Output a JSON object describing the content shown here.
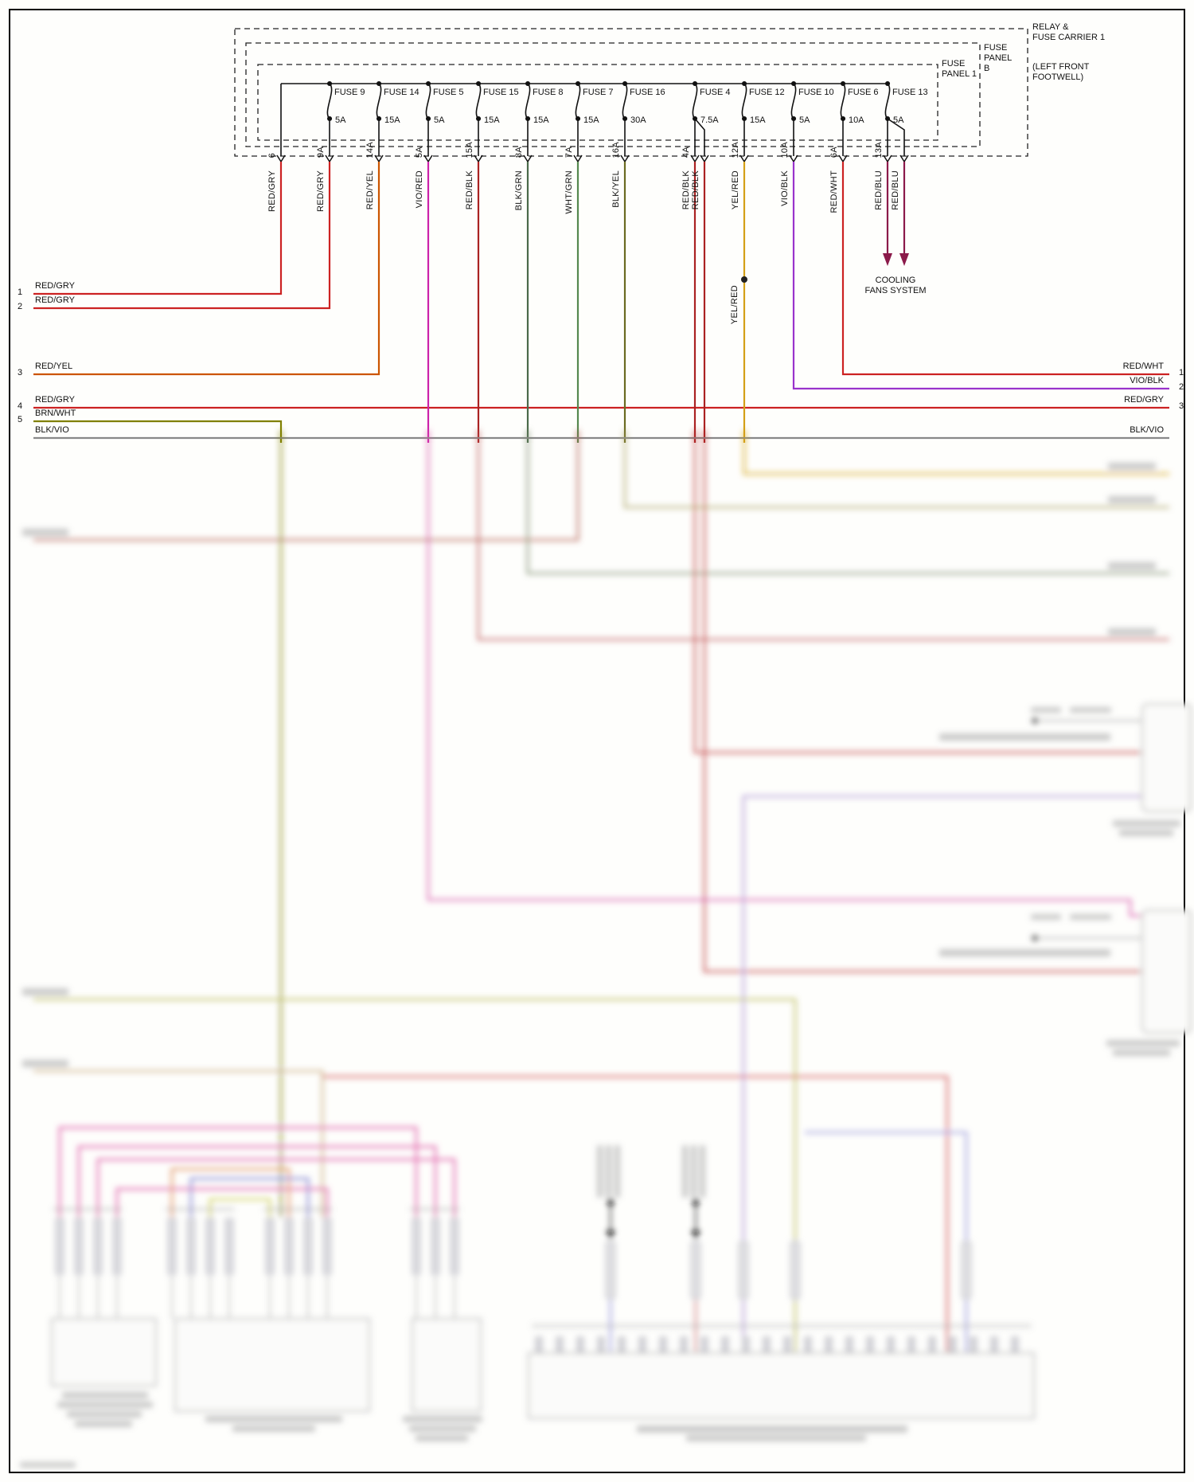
{
  "header": {
    "carrier_title": "RELAY &\nFUSE CARRIER 1",
    "carrier_location": "(LEFT FRONT\nFOOTWELL)",
    "panel_b": "FUSE\nPANEL\nB",
    "panel_1": "FUSE\nPANEL 1"
  },
  "fuses": [
    {
      "label": "FUSE 9",
      "amp": "5A"
    },
    {
      "label": "FUSE 14",
      "amp": "15A"
    },
    {
      "label": "FUSE 5",
      "amp": "5A"
    },
    {
      "label": "FUSE 15",
      "amp": "15A"
    },
    {
      "label": "FUSE 8",
      "amp": "15A"
    },
    {
      "label": "FUSE 7",
      "amp": "15A"
    },
    {
      "label": "FUSE 16",
      "amp": "30A"
    },
    {
      "label": "FUSE 4",
      "amp": "7.5A"
    },
    {
      "label": "FUSE 12",
      "amp": "15A"
    },
    {
      "label": "FUSE 10",
      "amp": "5A"
    },
    {
      "label": "FUSE 6",
      "amp": "10A"
    },
    {
      "label": "FUSE 13",
      "amp": "5A"
    }
  ],
  "drops": [
    {
      "pin": "6",
      "wire": "RED/GRY"
    },
    {
      "pin": "9A",
      "wire": "RED/GRY"
    },
    {
      "pin": "14A",
      "wire": "RED/YEL"
    },
    {
      "pin": "5A",
      "wire": "VIO/RED"
    },
    {
      "pin": "15A",
      "wire": "RED/BLK"
    },
    {
      "pin": "8A",
      "wire": "BLK/GRN"
    },
    {
      "pin": "7A",
      "wire": "WHT/GRN"
    },
    {
      "pin": "16A",
      "wire": "BLK/YEL"
    },
    {
      "pin": "4A",
      "wire": "RED/BLK"
    },
    {
      "pin": "",
      "wire": "RED/BLK"
    },
    {
      "pin": "12A",
      "wire": "YEL/RED"
    },
    {
      "pin": "10A",
      "wire": "VIO/BLK"
    },
    {
      "pin": "6A",
      "wire": "RED/WHT"
    },
    {
      "pin": "13A",
      "wire": "RED/BLU"
    },
    {
      "pin": "",
      "wire": "RED/BLU"
    }
  ],
  "left_wires": [
    {
      "num": "1",
      "label": "RED/GRY"
    },
    {
      "num": "2",
      "label": "RED/GRY"
    },
    {
      "num": "3",
      "label": "RED/YEL"
    },
    {
      "num": "4",
      "label": "RED/GRY"
    },
    {
      "num": "5",
      "label": "BRN/WHT"
    },
    {
      "num": "",
      "label": "BLK/VIO"
    }
  ],
  "right_wires": [
    {
      "num": "1",
      "label": "RED/WHT"
    },
    {
      "num": "2",
      "label": "VIO/BLK"
    },
    {
      "num": "3",
      "label": "RED/GRY"
    },
    {
      "num": "",
      "label": "BLK/VIO"
    }
  ],
  "junction_label": "YEL/RED",
  "cooling_label": "COOLING\nFANS SYSTEM",
  "colors": {
    "red": "#cc2222",
    "red_yel": "#cc5500",
    "vio_red": "#cc22aa",
    "red_blk": "#aa2222",
    "blk_grn": "#4a6a4a",
    "wht_grn": "#55884f",
    "blk_yel": "#6b6b22",
    "yel_red": "#d4a017",
    "vio_blk": "#9933cc",
    "red_blu": "#8b1a4a",
    "brn_wht": "#808000",
    "blk_vio": "#888888"
  }
}
